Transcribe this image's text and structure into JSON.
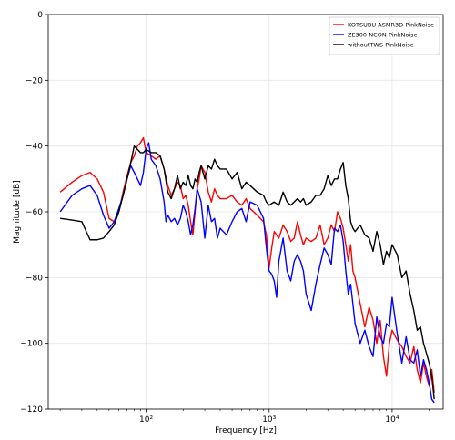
{
  "chart_data": {
    "type": "line",
    "xlabel": "Frequency [Hz]",
    "ylabel": "Magnitude [dB]",
    "xscale": "log",
    "xlim": [
      16,
      26000
    ],
    "ylim": [
      -120,
      0
    ],
    "grid": true,
    "legend_position": "top-right",
    "x_ticks": [
      {
        "value": 100,
        "label": "10²"
      },
      {
        "value": 1000,
        "label": "10³"
      },
      {
        "value": 10000,
        "label": "10⁴"
      }
    ],
    "y_ticks": [
      {
        "value": 0,
        "label": "0"
      },
      {
        "value": -20,
        "label": "−20"
      },
      {
        "value": -40,
        "label": "−40"
      },
      {
        "value": -60,
        "label": "−60"
      },
      {
        "value": -80,
        "label": "−80"
      },
      {
        "value": -100,
        "label": "−100"
      },
      {
        "value": -120,
        "label": "−120"
      }
    ],
    "series": [
      {
        "name": "KOTSUBU-ASMR3D-PinkNoise",
        "color": "#ff0000",
        "points": [
          [
            20,
            -54
          ],
          [
            25,
            -51
          ],
          [
            30,
            -49
          ],
          [
            35,
            -48
          ],
          [
            40,
            -50
          ],
          [
            45,
            -54
          ],
          [
            50,
            -62
          ],
          [
            55,
            -63
          ],
          [
            60,
            -60
          ],
          [
            65,
            -54
          ],
          [
            70,
            -49
          ],
          [
            75,
            -45
          ],
          [
            80,
            -43
          ],
          [
            85,
            -40
          ],
          [
            90,
            -39
          ],
          [
            95,
            -37.5
          ],
          [
            100,
            -42
          ],
          [
            110,
            -43
          ],
          [
            120,
            -44
          ],
          [
            130,
            -43
          ],
          [
            140,
            -47
          ],
          [
            150,
            -52
          ],
          [
            160,
            -55
          ],
          [
            170,
            -53
          ],
          [
            180,
            -51
          ],
          [
            190,
            -52
          ],
          [
            200,
            -56
          ],
          [
            210,
            -55
          ],
          [
            220,
            -58
          ],
          [
            230,
            -63
          ],
          [
            240,
            -67
          ],
          [
            250,
            -60
          ],
          [
            260,
            -53
          ],
          [
            270,
            -50
          ],
          [
            280,
            -46
          ],
          [
            300,
            -48
          ],
          [
            320,
            -54
          ],
          [
            340,
            -57
          ],
          [
            360,
            -53
          ],
          [
            380,
            -55
          ],
          [
            400,
            -56
          ],
          [
            450,
            -56
          ],
          [
            500,
            -55
          ],
          [
            550,
            -57
          ],
          [
            600,
            -58
          ],
          [
            650,
            -56
          ],
          [
            700,
            -59
          ],
          [
            800,
            -61
          ],
          [
            900,
            -63
          ],
          [
            950,
            -67
          ],
          [
            1000,
            -77
          ],
          [
            1050,
            -71
          ],
          [
            1100,
            -66
          ],
          [
            1200,
            -68
          ],
          [
            1300,
            -64
          ],
          [
            1400,
            -66
          ],
          [
            1500,
            -69
          ],
          [
            1600,
            -68
          ],
          [
            1700,
            -63
          ],
          [
            1800,
            -67
          ],
          [
            1900,
            -70
          ],
          [
            2000,
            -68
          ],
          [
            2200,
            -69
          ],
          [
            2400,
            -68
          ],
          [
            2600,
            -64
          ],
          [
            2800,
            -70
          ],
          [
            3000,
            -68
          ],
          [
            3200,
            -64
          ],
          [
            3400,
            -66
          ],
          [
            3600,
            -60
          ],
          [
            3800,
            -62
          ],
          [
            4000,
            -65
          ],
          [
            4200,
            -70
          ],
          [
            4400,
            -75
          ],
          [
            4600,
            -70
          ],
          [
            4800,
            -78
          ],
          [
            5000,
            -80
          ],
          [
            5500,
            -88
          ],
          [
            6000,
            -95
          ],
          [
            6500,
            -89
          ],
          [
            7000,
            -93
          ],
          [
            7500,
            -100
          ],
          [
            8000,
            -93
          ],
          [
            8500,
            -104
          ],
          [
            9000,
            -110
          ],
          [
            9500,
            -100
          ],
          [
            10000,
            -96
          ],
          [
            11000,
            -99
          ],
          [
            12000,
            -101
          ],
          [
            13000,
            -104
          ],
          [
            14000,
            -106
          ],
          [
            15000,
            -101
          ],
          [
            16000,
            -108
          ],
          [
            17000,
            -112
          ],
          [
            18000,
            -106
          ],
          [
            19000,
            -110
          ],
          [
            20000,
            -113
          ],
          [
            21000,
            -108
          ],
          [
            22000,
            -115
          ]
        ]
      },
      {
        "name": "ZE300-NCON-PinkNoise",
        "color": "#0000ff",
        "points": [
          [
            20,
            -60
          ],
          [
            25,
            -55
          ],
          [
            30,
            -53
          ],
          [
            35,
            -52
          ],
          [
            40,
            -55
          ],
          [
            45,
            -61
          ],
          [
            50,
            -65
          ],
          [
            55,
            -63
          ],
          [
            60,
            -59
          ],
          [
            65,
            -55
          ],
          [
            70,
            -50
          ],
          [
            75,
            -46
          ],
          [
            80,
            -48
          ],
          [
            85,
            -50
          ],
          [
            90,
            -52
          ],
          [
            95,
            -48
          ],
          [
            100,
            -41
          ],
          [
            105,
            -39
          ],
          [
            110,
            -44
          ],
          [
            120,
            -46
          ],
          [
            130,
            -50
          ],
          [
            140,
            -57
          ],
          [
            145,
            -63
          ],
          [
            150,
            -61
          ],
          [
            160,
            -63
          ],
          [
            170,
            -62
          ],
          [
            180,
            -64
          ],
          [
            190,
            -62
          ],
          [
            200,
            -58
          ],
          [
            210,
            -60
          ],
          [
            220,
            -63
          ],
          [
            230,
            -67
          ],
          [
            240,
            -64
          ],
          [
            250,
            -59
          ],
          [
            260,
            -53
          ],
          [
            270,
            -55
          ],
          [
            280,
            -57
          ],
          [
            300,
            -68
          ],
          [
            320,
            -58
          ],
          [
            340,
            -63
          ],
          [
            360,
            -62
          ],
          [
            380,
            -68
          ],
          [
            400,
            -65
          ],
          [
            450,
            -67
          ],
          [
            500,
            -63
          ],
          [
            550,
            -60
          ],
          [
            600,
            -59
          ],
          [
            650,
            -63
          ],
          [
            700,
            -57
          ],
          [
            800,
            -58
          ],
          [
            900,
            -62
          ],
          [
            950,
            -71
          ],
          [
            1000,
            -78
          ],
          [
            1050,
            -79
          ],
          [
            1100,
            -81
          ],
          [
            1150,
            -86
          ],
          [
            1200,
            -75
          ],
          [
            1300,
            -68
          ],
          [
            1400,
            -78
          ],
          [
            1500,
            -81
          ],
          [
            1600,
            -75
          ],
          [
            1700,
            -73
          ],
          [
            1800,
            -75
          ],
          [
            1900,
            -78
          ],
          [
            2000,
            -85
          ],
          [
            2200,
            -90
          ],
          [
            2400,
            -82
          ],
          [
            2600,
            -76
          ],
          [
            2800,
            -71
          ],
          [
            3000,
            -73
          ],
          [
            3200,
            -76
          ],
          [
            3400,
            -65
          ],
          [
            3600,
            -66
          ],
          [
            3800,
            -64
          ],
          [
            4000,
            -69
          ],
          [
            4200,
            -78
          ],
          [
            4400,
            -85
          ],
          [
            4600,
            -82
          ],
          [
            4800,
            -88
          ],
          [
            5000,
            -94
          ],
          [
            5500,
            -100
          ],
          [
            6000,
            -96
          ],
          [
            6500,
            -101
          ],
          [
            7000,
            -104
          ],
          [
            7500,
            -92
          ],
          [
            8000,
            -98
          ],
          [
            8500,
            -100
          ],
          [
            9000,
            -94
          ],
          [
            9500,
            -95
          ],
          [
            10000,
            -86
          ],
          [
            11000,
            -97
          ],
          [
            12000,
            -106
          ],
          [
            13000,
            -98
          ],
          [
            14000,
            -105
          ],
          [
            15000,
            -106
          ],
          [
            16000,
            -102
          ],
          [
            17000,
            -110
          ],
          [
            18000,
            -105
          ],
          [
            19000,
            -108
          ],
          [
            20000,
            -112
          ],
          [
            21000,
            -117
          ],
          [
            22000,
            -118
          ]
        ]
      },
      {
        "name": "withoutTWS-PinkNoise",
        "color": "#000000",
        "points": [
          [
            20,
            -62
          ],
          [
            25,
            -62.5
          ],
          [
            30,
            -63
          ],
          [
            35,
            -68.5
          ],
          [
            40,
            -68.5
          ],
          [
            45,
            -68
          ],
          [
            50,
            -66
          ],
          [
            55,
            -64
          ],
          [
            60,
            -60
          ],
          [
            65,
            -55
          ],
          [
            70,
            -50
          ],
          [
            75,
            -45
          ],
          [
            80,
            -40
          ],
          [
            85,
            -41
          ],
          [
            90,
            -42
          ],
          [
            95,
            -42
          ],
          [
            100,
            -41
          ],
          [
            110,
            -42
          ],
          [
            120,
            -42
          ],
          [
            130,
            -43
          ],
          [
            140,
            -47
          ],
          [
            150,
            -54
          ],
          [
            160,
            -56
          ],
          [
            170,
            -53
          ],
          [
            180,
            -49
          ],
          [
            190,
            -53
          ],
          [
            200,
            -51
          ],
          [
            210,
            -52
          ],
          [
            220,
            -49
          ],
          [
            230,
            -52
          ],
          [
            240,
            -53
          ],
          [
            250,
            -50
          ],
          [
            260,
            -51
          ],
          [
            270,
            -48
          ],
          [
            280,
            -46
          ],
          [
            300,
            -50
          ],
          [
            320,
            -46
          ],
          [
            340,
            -47
          ],
          [
            360,
            -44
          ],
          [
            380,
            -46
          ],
          [
            400,
            -47
          ],
          [
            450,
            -47
          ],
          [
            500,
            -50
          ],
          [
            550,
            -48
          ],
          [
            600,
            -53
          ],
          [
            650,
            -51
          ],
          [
            700,
            -52
          ],
          [
            800,
            -54
          ],
          [
            900,
            -55
          ],
          [
            950,
            -57
          ],
          [
            1000,
            -58
          ],
          [
            1100,
            -57
          ],
          [
            1200,
            -58
          ],
          [
            1300,
            -54
          ],
          [
            1400,
            -57
          ],
          [
            1500,
            -58
          ],
          [
            1600,
            -57
          ],
          [
            1700,
            -56
          ],
          [
            1800,
            -57
          ],
          [
            1900,
            -56
          ],
          [
            2000,
            -58
          ],
          [
            2200,
            -57
          ],
          [
            2400,
            -55
          ],
          [
            2600,
            -55
          ],
          [
            2800,
            -53
          ],
          [
            3000,
            -49
          ],
          [
            3200,
            -52
          ],
          [
            3400,
            -50
          ],
          [
            3600,
            -50
          ],
          [
            3800,
            -47
          ],
          [
            4000,
            -45
          ],
          [
            4200,
            -52
          ],
          [
            4400,
            -56
          ],
          [
            4600,
            -63
          ],
          [
            4800,
            -65
          ],
          [
            5000,
            -66
          ],
          [
            5500,
            -64
          ],
          [
            6000,
            -67
          ],
          [
            6500,
            -68
          ],
          [
            7000,
            -72
          ],
          [
            7500,
            -66
          ],
          [
            8000,
            -70
          ],
          [
            8500,
            -76
          ],
          [
            9000,
            -72
          ],
          [
            9500,
            -74
          ],
          [
            10000,
            -70
          ],
          [
            11000,
            -73
          ],
          [
            12000,
            -80
          ],
          [
            13000,
            -78
          ],
          [
            14000,
            -85
          ],
          [
            15000,
            -90
          ],
          [
            16000,
            -96
          ],
          [
            17000,
            -95
          ],
          [
            18000,
            -100
          ],
          [
            19000,
            -103
          ],
          [
            20000,
            -106
          ],
          [
            21000,
            -110
          ],
          [
            22000,
            -117
          ]
        ]
      }
    ]
  }
}
